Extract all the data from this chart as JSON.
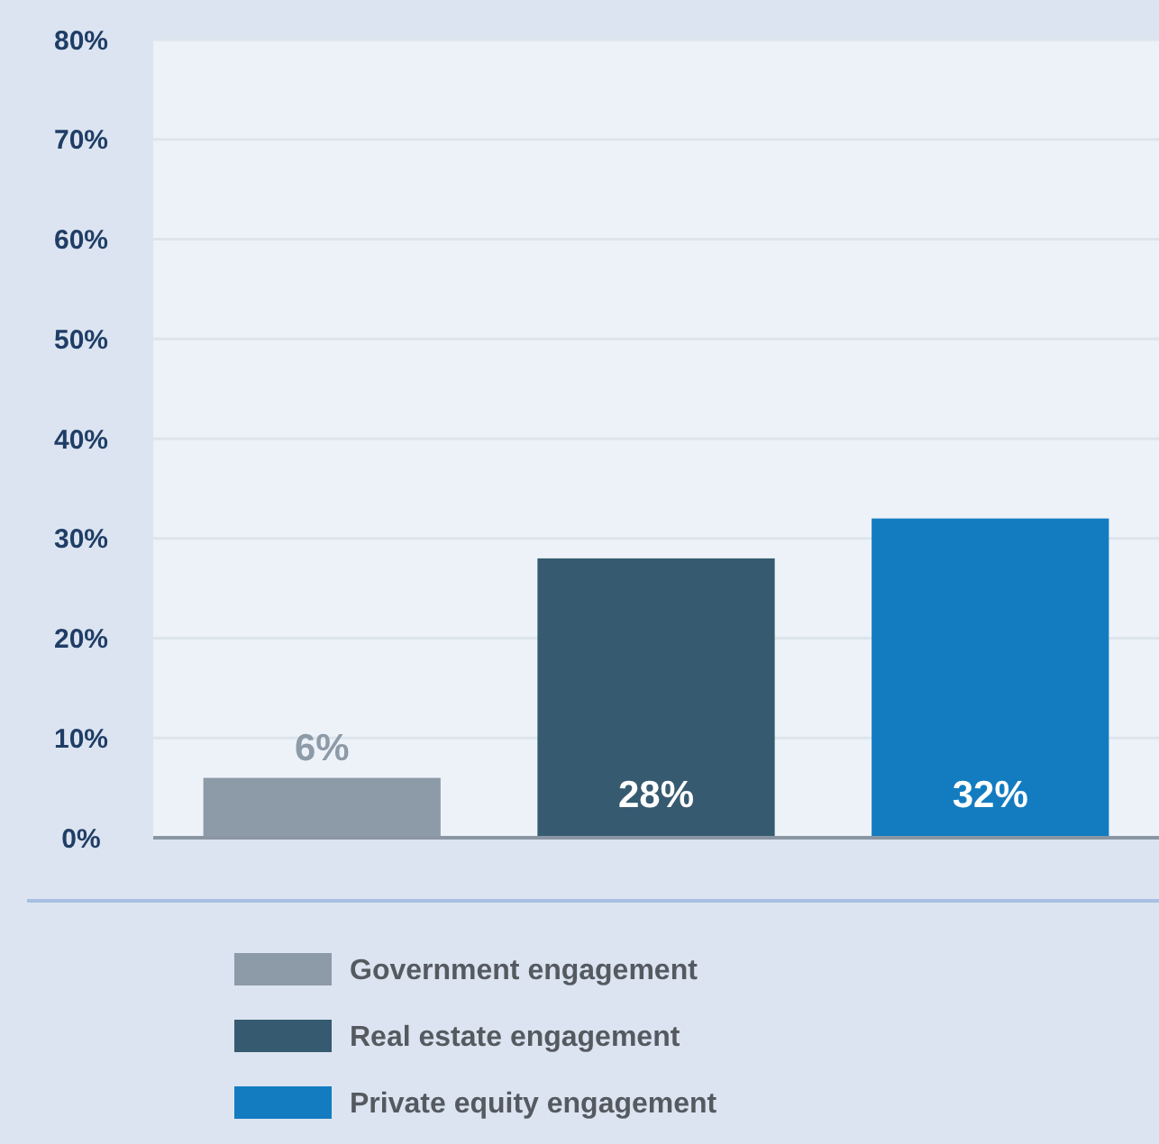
{
  "chart_data": {
    "type": "bar",
    "categories": [
      null,
      null,
      null
    ],
    "series": [
      {
        "name": "Government engagement",
        "color": "#8d9aa8",
        "values": [
          6,
          null,
          null
        ],
        "value_labels": [
          "6%",
          null,
          null
        ]
      },
      {
        "name": "Real estate engagement",
        "color": "#365a70",
        "values": [
          null,
          28,
          null
        ],
        "value_labels": [
          null,
          "28%",
          null
        ]
      },
      {
        "name": "Private equity engagement",
        "color": "#137cc0",
        "values": [
          null,
          null,
          32
        ],
        "value_labels": [
          null,
          null,
          "32%"
        ]
      }
    ],
    "ylim": [
      0,
      80
    ],
    "yticks": [
      {
        "value": 0,
        "label": "0%"
      },
      {
        "value": 10,
        "label": "10%"
      },
      {
        "value": 20,
        "label": "20%"
      },
      {
        "value": 30,
        "label": "30%"
      },
      {
        "value": 40,
        "label": "40%"
      },
      {
        "value": 50,
        "label": "50%"
      },
      {
        "value": 60,
        "label": "60%"
      },
      {
        "value": 70,
        "label": "70%"
      },
      {
        "value": 80,
        "label": "80%"
      }
    ],
    "grid": "y",
    "legend": "bottom"
  }
}
